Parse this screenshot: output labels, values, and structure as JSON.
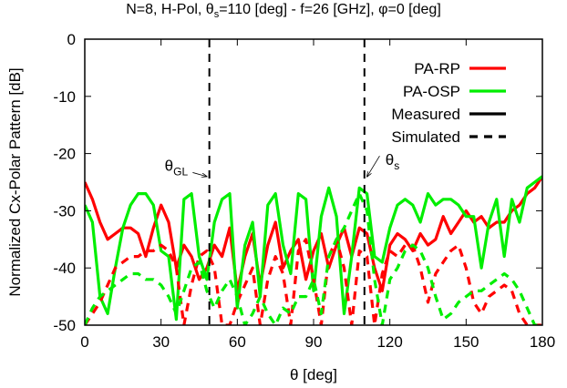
{
  "chart_data": {
    "type": "line",
    "title": {
      "prefix": "N=8, H-Pol, θ",
      "sub": "s",
      "suffix": "=110 [deg] - f=26 [GHz], φ=0 [deg]"
    },
    "xlabel": "θ [deg]",
    "ylabel": "Normalized Cx-Polar Pattern [dB]",
    "xlim": [
      0,
      180
    ],
    "ylim": [
      -50,
      0
    ],
    "xticks": [
      0,
      30,
      60,
      90,
      120,
      150,
      180
    ],
    "yticks": [
      0,
      -10,
      -20,
      -30,
      -40,
      -50
    ],
    "grid": false,
    "legend_position": "top-right",
    "legend": [
      {
        "label": "PA-RP",
        "color": "#ff0000",
        "dash": "solid"
      },
      {
        "label": "PA-OSP",
        "color": "#00ee00",
        "dash": "solid"
      },
      {
        "label": "Measured",
        "color": "#000000",
        "dash": "solid"
      },
      {
        "label": "Simulated",
        "color": "#000000",
        "dash": "dashed"
      }
    ],
    "vlines": [
      {
        "x": 49,
        "label_main": "θ",
        "label_sub": "GL",
        "label_at": [
          36,
          -23
        ]
      },
      {
        "x": 110,
        "label_main": "θ",
        "label_sub": "s",
        "label_at": [
          121,
          -22
        ]
      }
    ],
    "series": [
      {
        "name": "PA-RP",
        "kind": "Measured",
        "color": "#ff0000",
        "dash": "solid",
        "x": [
          0,
          3,
          6,
          9,
          12,
          15,
          18,
          21,
          24,
          27,
          30,
          33,
          36,
          39,
          42,
          45,
          48,
          51,
          54,
          57,
          60,
          63,
          66,
          69,
          72,
          75,
          78,
          81,
          84,
          87,
          90,
          93,
          96,
          99,
          102,
          105,
          108,
          111,
          114,
          117,
          120,
          123,
          126,
          129,
          132,
          135,
          138,
          141,
          144,
          147,
          150,
          153,
          156,
          159,
          162,
          165,
          168,
          171,
          174,
          177,
          180
        ],
        "y": [
          -25,
          -28,
          -32,
          -35,
          -34,
          -33,
          -33,
          -34,
          -38,
          -33,
          -29,
          -32,
          -40,
          -36,
          -38,
          -42,
          -40,
          -36,
          -38,
          -33,
          -44,
          -38,
          -34,
          -43,
          -36,
          -32,
          -40,
          -37,
          -35,
          -42,
          -37,
          -34,
          -40,
          -36,
          -33,
          -38,
          -33,
          -34,
          -40,
          -44,
          -36,
          -34,
          -35,
          -37,
          -34,
          -36,
          -35,
          -31,
          -34,
          -32,
          -30,
          -32,
          -31,
          -33,
          -32,
          -32,
          -30,
          -29,
          -27,
          -26,
          -24
        ]
      },
      {
        "name": "PA-OSP",
        "kind": "Measured",
        "color": "#00ee00",
        "dash": "solid",
        "x": [
          0,
          3,
          6,
          9,
          12,
          15,
          18,
          21,
          24,
          27,
          30,
          33,
          36,
          39,
          42,
          45,
          48,
          51,
          54,
          57,
          60,
          63,
          66,
          69,
          72,
          75,
          78,
          81,
          84,
          87,
          90,
          93,
          96,
          99,
          102,
          105,
          108,
          111,
          114,
          117,
          120,
          123,
          126,
          129,
          132,
          135,
          138,
          141,
          144,
          147,
          150,
          153,
          156,
          159,
          162,
          165,
          168,
          171,
          174,
          177,
          180
        ],
        "y": [
          -29,
          -32,
          -45,
          -48,
          -40,
          -33,
          -29,
          -27,
          -27,
          -29,
          -37,
          -38,
          -49,
          -28,
          -27,
          -38,
          -42,
          -32,
          -28,
          -27,
          -47,
          -36,
          -32,
          -45,
          -29,
          -27,
          -36,
          -41,
          -27,
          -28,
          -44,
          -31,
          -26,
          -31,
          -48,
          -38,
          -26,
          -27,
          -38,
          -39,
          -33,
          -29,
          -28,
          -29,
          -32,
          -27,
          -29,
          -28,
          -28,
          -29,
          -31,
          -31,
          -40,
          -32,
          -28,
          -38,
          -28,
          -32,
          -26,
          -25,
          -24
        ]
      },
      {
        "name": "PA-RP",
        "kind": "Simulated",
        "color": "#ff0000",
        "dash": "dashed",
        "x": [
          0,
          3,
          6,
          9,
          12,
          15,
          18,
          21,
          24,
          27,
          30,
          33,
          36,
          39,
          42,
          45,
          48,
          51,
          54,
          57,
          60,
          63,
          66,
          69,
          72,
          75,
          78,
          81,
          84,
          87,
          90,
          93,
          96,
          99,
          102,
          105,
          108,
          111,
          114,
          117,
          120,
          123,
          126,
          129,
          132,
          135,
          138,
          141,
          144,
          147,
          150,
          153,
          156,
          159,
          162,
          165,
          168,
          171,
          174,
          177,
          180
        ],
        "y": [
          -50,
          -48,
          -46,
          -43,
          -40,
          -39,
          -38,
          -38,
          -37,
          -37,
          -36,
          -37,
          -40,
          -50,
          -43,
          -38,
          -37,
          -40,
          -50,
          -50,
          -46,
          -43,
          -40,
          -50,
          -42,
          -38,
          -41,
          -50,
          -37,
          -35,
          -42,
          -50,
          -38,
          -35,
          -40,
          -50,
          -37,
          -38,
          -50,
          -41,
          -37,
          -38,
          -36,
          -36,
          -40,
          -46,
          -41,
          -39,
          -37,
          -36,
          -40,
          -46,
          -48,
          -45,
          -44,
          -43,
          -44,
          -48,
          -50,
          -50,
          -50
        ]
      },
      {
        "name": "PA-OSP",
        "kind": "Simulated",
        "color": "#00ee00",
        "dash": "dashed",
        "x": [
          0,
          3,
          6,
          9,
          12,
          15,
          18,
          21,
          24,
          27,
          30,
          33,
          36,
          39,
          42,
          45,
          48,
          51,
          54,
          57,
          60,
          63,
          66,
          69,
          72,
          75,
          78,
          81,
          84,
          87,
          90,
          93,
          96,
          99,
          102,
          105,
          108,
          111,
          114,
          117,
          120,
          123,
          126,
          129,
          132,
          135,
          138,
          141,
          144,
          147,
          150,
          153,
          156,
          159,
          162,
          165,
          168,
          171,
          174,
          177,
          180
        ],
        "y": [
          -50,
          -47,
          -45,
          -44,
          -43,
          -42,
          -41,
          -41,
          -42,
          -42,
          -43,
          -45,
          -48,
          -44,
          -40,
          -39,
          -44,
          -47,
          -44,
          -42,
          -45,
          -50,
          -48,
          -45,
          -48,
          -50,
          -47,
          -48,
          -45,
          -45,
          -42,
          -48,
          -38,
          -35,
          -33,
          -30,
          -27,
          -30,
          -42,
          -50,
          -42,
          -40,
          -37,
          -36,
          -37,
          -40,
          -45,
          -49,
          -48,
          -46,
          -45,
          -44,
          -44,
          -43,
          -42,
          -41,
          -42,
          -44,
          -47,
          -50,
          -50
        ]
      }
    ]
  }
}
